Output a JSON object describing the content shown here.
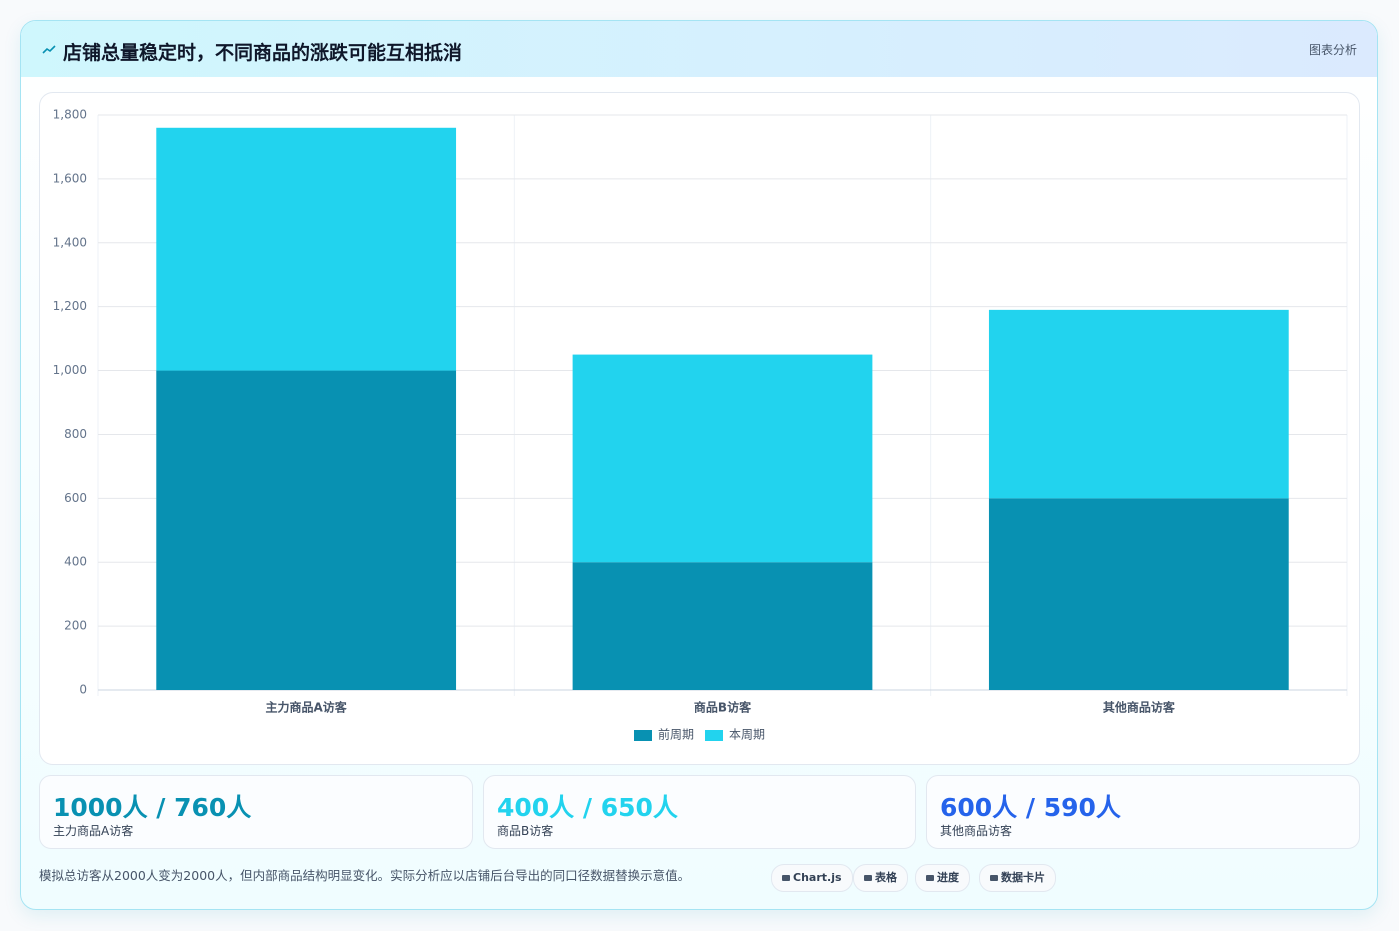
{
  "header": {
    "title": "店铺总量稳定时，不同商品的涨跌可能互相抵消",
    "tag": "图表分析"
  },
  "chart_data": {
    "type": "bar",
    "stacked": true,
    "categories": [
      "主力商品A访客",
      "商品B访客",
      "其他商品访客"
    ],
    "series": [
      {
        "name": "前周期",
        "color": "#0891b2",
        "values": [
          1000,
          400,
          600
        ]
      },
      {
        "name": "本周期",
        "color": "#22d3ee",
        "values": [
          760,
          650,
          590
        ]
      }
    ],
    "ylim": [
      0,
      1800
    ],
    "yticks": [
      0,
      200,
      400,
      600,
      800,
      {
        "value": 1000,
        "label": "1,000"
      },
      {
        "value": 1200,
        "label": "1,200"
      },
      {
        "value": 1400,
        "label": "1,400"
      },
      {
        "value": 1600,
        "label": "1,600"
      },
      {
        "value": 1800,
        "label": "1,800"
      }
    ],
    "grid": true,
    "legend": "bottom"
  },
  "cards": [
    {
      "value": "1000人 / 760人",
      "label": "主力商品A访客",
      "color": "#0891b2"
    },
    {
      "value": "400人 / 650人",
      "label": "商品B访客",
      "color": "#22d3ee"
    },
    {
      "value": "600人 / 590人",
      "label": "其他商品访客",
      "color": "#2563eb"
    }
  ],
  "footer": {
    "note": "模拟总访客从2000人变为2000人，但内部商品结构明显变化。实际分析应以店铺后台导出的同口径数据替换示意值。",
    "tags": [
      "Chart.js",
      "表格",
      "进度",
      "数据卡片"
    ]
  }
}
